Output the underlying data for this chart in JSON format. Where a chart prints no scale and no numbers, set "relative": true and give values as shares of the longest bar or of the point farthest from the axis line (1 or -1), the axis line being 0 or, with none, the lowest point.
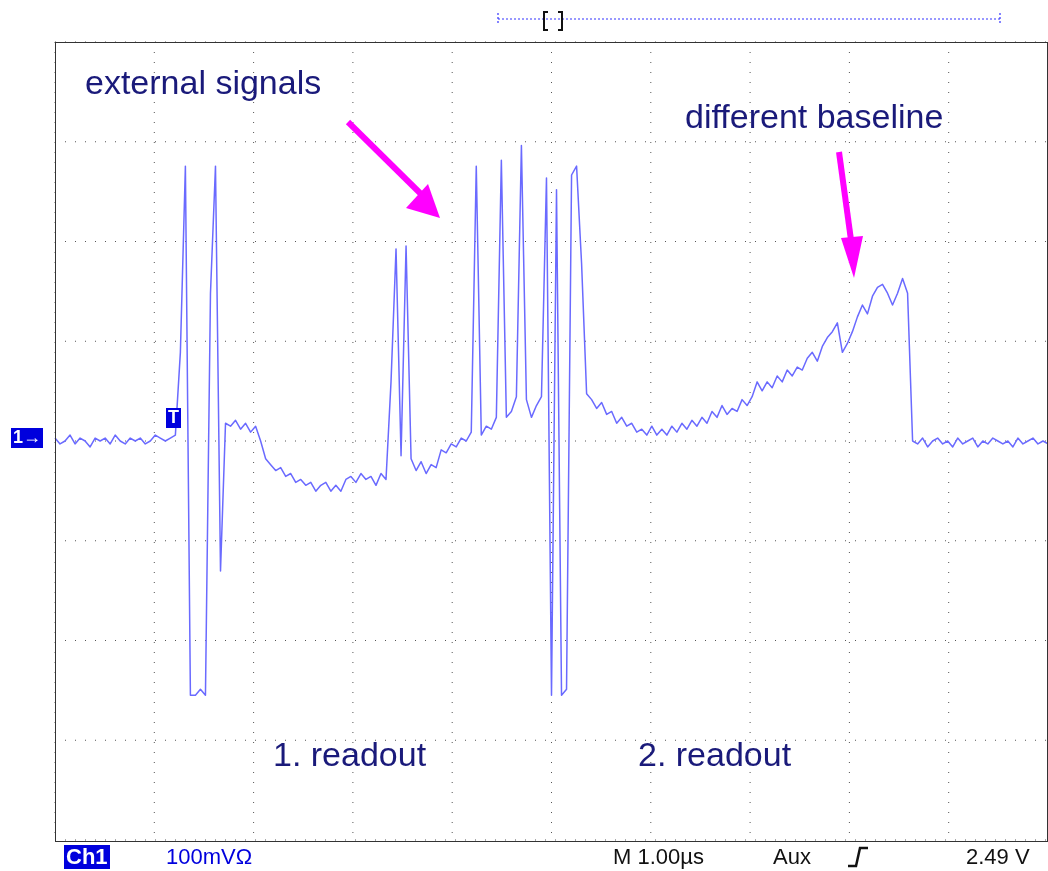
{
  "chart_data": {
    "type": "line",
    "relative": true,
    "grid": true,
    "line_style": "solid",
    "marker": "none",
    "annotations": [
      "external signals",
      "different baseline",
      "1. readout",
      "2. readout",
      "Ch1",
      "100mVΩ",
      "M 1.00µs",
      "Aux",
      "2.49 V",
      "1→",
      "T"
    ],
    "categories": [
      null,
      null,
      null,
      null,
      null,
      null,
      null,
      null,
      null,
      null,
      null,
      null,
      null,
      null,
      null,
      null,
      null,
      null,
      null,
      null,
      null,
      null,
      null,
      null,
      null,
      null,
      null,
      null,
      null,
      null,
      null,
      null,
      null,
      null,
      null,
      null,
      null,
      null,
      null,
      null,
      null,
      null,
      null,
      null,
      null,
      null,
      null,
      null,
      null,
      null,
      null,
      null,
      null,
      null,
      null,
      null,
      null,
      null,
      null,
      null,
      null,
      null,
      null,
      null,
      null,
      null,
      null,
      null,
      null,
      null,
      null,
      null,
      null,
      null,
      null,
      null,
      null,
      null,
      null,
      null,
      null,
      null,
      null,
      null,
      null,
      null,
      null,
      null,
      null,
      null,
      null,
      null,
      null,
      null,
      null,
      null,
      null,
      null,
      null,
      null,
      null,
      null,
      null,
      null,
      null,
      null,
      null,
      null,
      null,
      null,
      null,
      null,
      null,
      null,
      null,
      null,
      null,
      null,
      null,
      null,
      null,
      null,
      null,
      null,
      null,
      null,
      null,
      null,
      null,
      null,
      null,
      null,
      null,
      null,
      null,
      null,
      null,
      null,
      null,
      null,
      null,
      null,
      null,
      null,
      null,
      null,
      null,
      null,
      null,
      null,
      null,
      null,
      null,
      null,
      null,
      null,
      null,
      null,
      null,
      null,
      null,
      null,
      null,
      null,
      null,
      null,
      null,
      null,
      null,
      null,
      null,
      null,
      null,
      null,
      null,
      null,
      null,
      null,
      null,
      null,
      null,
      null,
      null,
      null,
      null,
      null,
      null,
      null,
      null,
      null,
      null,
      null,
      null,
      null,
      null,
      null,
      null,
      null,
      null
    ],
    "series": [
      {
        "color": "#6a6aff",
        "values": [
          0.01,
          -0.01,
          0,
          0.02,
          -0.01,
          0.01,
          0,
          -0.02,
          0.01,
          0,
          0.01,
          -0.01,
          0.02,
          0,
          -0.01,
          0.01,
          0,
          0.01,
          -0.01,
          0,
          0.02,
          0.01,
          0,
          0.01,
          0.02,
          0.3,
          0.93,
          -0.86,
          -0.86,
          -0.84,
          -0.86,
          0.5,
          0.93,
          -0.44,
          0.06,
          0.05,
          0.07,
          0.04,
          0.06,
          0.03,
          0.05,
          0,
          -0.06,
          -0.08,
          -0.1,
          -0.09,
          -0.12,
          -0.11,
          -0.14,
          -0.13,
          -0.15,
          -0.14,
          -0.17,
          -0.15,
          -0.14,
          -0.17,
          -0.15,
          -0.17,
          -0.13,
          -0.12,
          -0.14,
          -0.11,
          -0.13,
          -0.12,
          -0.15,
          -0.11,
          -0.13,
          0.2,
          0.65,
          -0.05,
          0.66,
          -0.06,
          -0.1,
          -0.07,
          -0.11,
          -0.08,
          -0.09,
          -0.03,
          -0.04,
          -0.01,
          -0.02,
          0.01,
          0,
          0.03,
          0.93,
          0.02,
          0.05,
          0.04,
          0.08,
          0.95,
          0.08,
          0.1,
          0.15,
          1,
          0.14,
          0.08,
          0.12,
          0.15,
          0.89,
          -0.86,
          0.85,
          -0.86,
          -0.84,
          0.9,
          0.93,
          0.6,
          0.16,
          0.14,
          0.11,
          0.13,
          0.09,
          0.1,
          0.06,
          0.08,
          0.05,
          0.06,
          0.03,
          0.04,
          0.02,
          0.05,
          0.02,
          0.04,
          0.02,
          0.05,
          0.03,
          0.06,
          0.04,
          0.07,
          0.05,
          0.08,
          0.06,
          0.1,
          0.08,
          0.12,
          0.09,
          0.11,
          0.1,
          0.14,
          0.12,
          0.15,
          0.2,
          0.17,
          0.2,
          0.18,
          0.22,
          0.2,
          0.24,
          0.22,
          0.25,
          0.24,
          0.28,
          0.3,
          0.27,
          0.32,
          0.35,
          0.37,
          0.4,
          0.3,
          0.33,
          0.37,
          0.42,
          0.46,
          0.43,
          0.49,
          0.52,
          0.53,
          0.5,
          0.46,
          0.5,
          0.55,
          0.5,
          0,
          -0.01,
          0.01,
          -0.02,
          0,
          0.01,
          -0.01,
          0,
          -0.02,
          0.01,
          -0.01,
          0,
          0.01,
          -0.02,
          0,
          -0.01,
          0.01,
          0,
          -0.01,
          0,
          -0.02,
          0.01,
          -0.01,
          0,
          0.01,
          -0.01,
          0,
          -0.01
        ]
      }
    ]
  }
}
